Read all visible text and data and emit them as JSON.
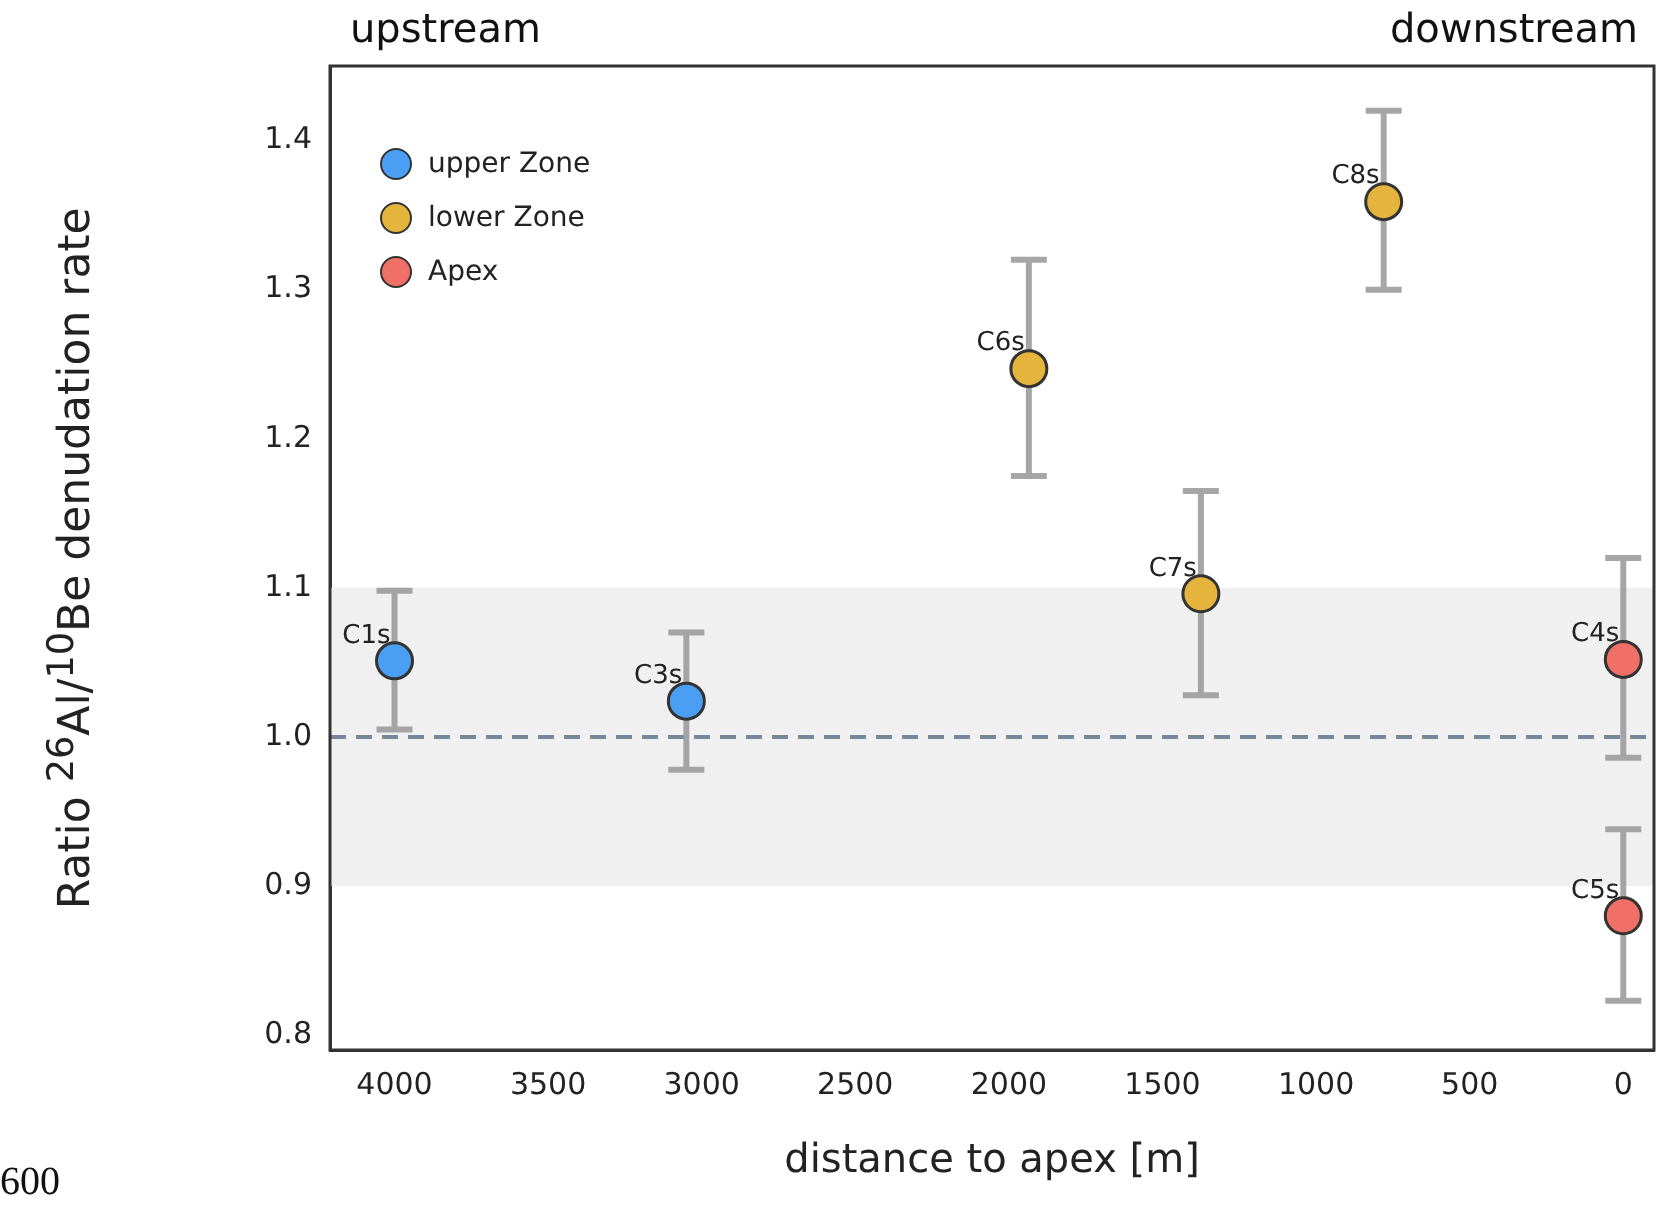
{
  "chart_data": {
    "type": "scatter",
    "xlabel": "distance to apex [m]",
    "ylabel": "Ratio $^{26}$Al/$^{10}$Be denudation rate",
    "xlim": [
      4210,
      -100
    ],
    "xticks": [
      4000,
      3500,
      3000,
      2500,
      2000,
      1500,
      1000,
      500,
      0
    ],
    "ylim": [
      0.79,
      1.45
    ],
    "yticks": [
      {
        "value": 0.8,
        "label": "0.8"
      },
      {
        "value": 0.9,
        "label": "0.9"
      },
      {
        "value": 1.0,
        "label": "1.0"
      },
      {
        "value": 1.1,
        "label": "1.1"
      },
      {
        "value": 1.2,
        "label": "1.2"
      },
      {
        "value": 1.3,
        "label": "1.3"
      },
      {
        "value": 1.4,
        "label": "1.4"
      }
    ],
    "series": [
      {
        "name": "upper Zone",
        "color": "#4a9ff5",
        "x": [
          4000,
          3050
        ],
        "values": [
          1.051,
          1.024
        ],
        "errors": [
          [
            1.005,
            1.098
          ],
          [
            0.978,
            1.07
          ]
        ]
      },
      {
        "name": "lower Zone",
        "color": "#e5b43c",
        "x": [
          1935,
          1375,
          780
        ],
        "values": [
          1.247,
          1.096,
          1.359
        ],
        "errors": [
          [
            1.175,
            1.32
          ],
          [
            1.028,
            1.165
          ],
          [
            1.3,
            1.42
          ]
        ]
      },
      {
        "name": "Apex",
        "color": "#f07068",
        "x": [
          0,
          0
        ],
        "values": [
          1.052,
          0.88
        ],
        "errors": [
          [
            0.986,
            1.12
          ],
          [
            0.823,
            0.938
          ]
        ]
      }
    ],
    "marker": "circle",
    "legend": "top left",
    "ref_lines": [
      {
        "axis": "y",
        "value": 1.0,
        "color": "#778899",
        "line_style": "dashed"
      }
    ],
    "bands": [
      {
        "axis": "y",
        "from": 0.9,
        "to": 1.1,
        "color": "#f0f0f0"
      }
    ],
    "annotations": [
      "upstream",
      "downstream",
      "600",
      {
        "text": "C1s",
        "x": 4000,
        "y": 1.051
      },
      {
        "text": "C3s",
        "x": 3050,
        "y": 1.024
      },
      {
        "text": "C6s",
        "x": 1935,
        "y": 1.247
      },
      {
        "text": "C7s",
        "x": 1375,
        "y": 1.096
      },
      {
        "text": "C8s",
        "x": 780,
        "y": 1.359
      },
      {
        "text": "C4s",
        "x": 0,
        "y": 1.052
      },
      {
        "text": "C5s",
        "x": 0,
        "y": 0.88
      }
    ]
  }
}
